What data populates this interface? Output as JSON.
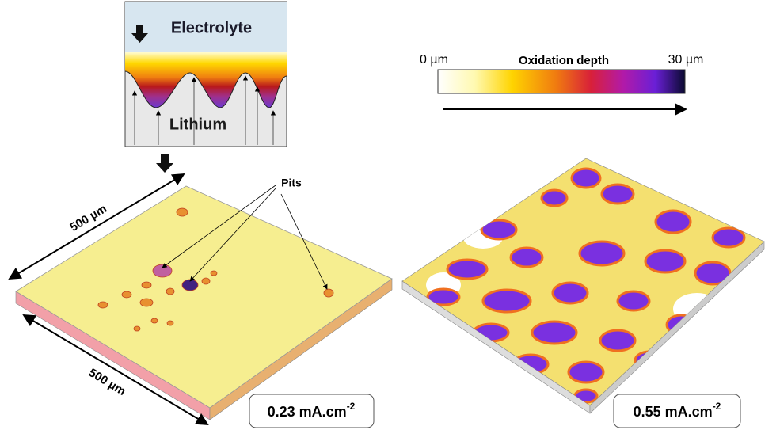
{
  "schematic": {
    "top_label": "Electrolyte",
    "bottom_label": "Lithium"
  },
  "colorbar": {
    "min_label": "0 µm",
    "title": "Oxidation depth",
    "max_label": "30 µm"
  },
  "left_panel": {
    "annotation": "Pits",
    "dimension_top": "500 µm",
    "dimension_bottom": "500 µm",
    "current_density": {
      "base": "0.23 mA.cm",
      "exponent": "-2"
    }
  },
  "right_panel": {
    "current_density": {
      "base": "0.55 mA.cm",
      "exponent": "-2"
    }
  }
}
